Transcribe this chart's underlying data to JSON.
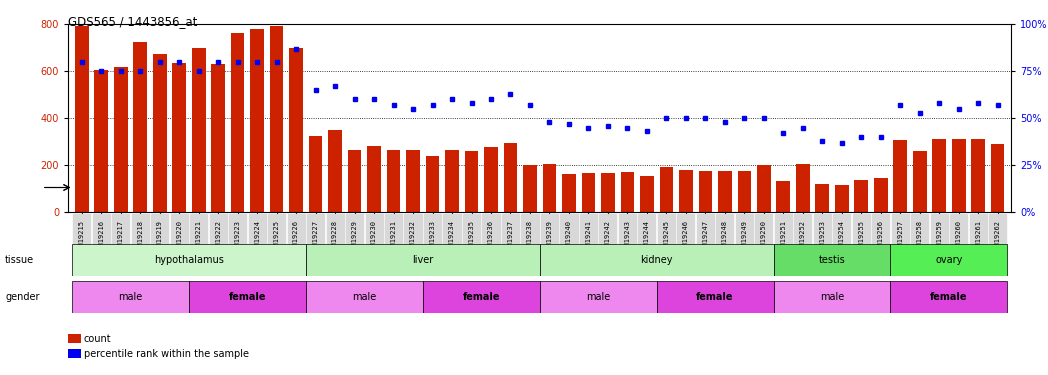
{
  "title": "GDS565 / 1443856_at",
  "samples": [
    "GSM19215",
    "GSM19216",
    "GSM19217",
    "GSM19218",
    "GSM19219",
    "GSM19220",
    "GSM19221",
    "GSM19222",
    "GSM19223",
    "GSM19224",
    "GSM19225",
    "GSM19226",
    "GSM19227",
    "GSM19228",
    "GSM19229",
    "GSM19230",
    "GSM19231",
    "GSM19232",
    "GSM19233",
    "GSM19234",
    "GSM19235",
    "GSM19236",
    "GSM19237",
    "GSM19238",
    "GSM19239",
    "GSM19240",
    "GSM19241",
    "GSM19242",
    "GSM19243",
    "GSM19244",
    "GSM19245",
    "GSM19246",
    "GSM19247",
    "GSM19248",
    "GSM19249",
    "GSM19250",
    "GSM19251",
    "GSM19252",
    "GSM19253",
    "GSM19254",
    "GSM19255",
    "GSM19256",
    "GSM19257",
    "GSM19258",
    "GSM19259",
    "GSM19260",
    "GSM19261",
    "GSM19262"
  ],
  "counts": [
    795,
    605,
    620,
    725,
    675,
    635,
    698,
    630,
    763,
    782,
    795,
    700,
    325,
    350,
    265,
    280,
    265,
    265,
    240,
    265,
    260,
    278,
    295,
    200,
    205,
    160,
    165,
    165,
    170,
    155,
    190,
    180,
    175,
    175,
    175,
    200,
    130,
    205,
    120,
    115,
    135,
    145,
    308,
    260,
    310,
    310,
    310,
    290
  ],
  "percentiles": [
    80,
    75,
    75,
    75,
    80,
    80,
    75,
    80,
    80,
    80,
    80,
    87,
    65,
    67,
    60,
    60,
    57,
    55,
    57,
    60,
    58,
    60,
    63,
    57,
    48,
    47,
    45,
    46,
    45,
    43,
    50,
    50,
    50,
    48,
    50,
    50,
    42,
    45,
    38,
    37,
    40,
    40,
    57,
    53,
    58,
    55,
    58,
    57
  ],
  "tissues": [
    {
      "name": "hypothalamus",
      "start": 0,
      "end": 11,
      "color": "#ccf5cc"
    },
    {
      "name": "liver",
      "start": 12,
      "end": 23,
      "color": "#b8f0b8"
    },
    {
      "name": "kidney",
      "start": 24,
      "end": 35,
      "color": "#b8f0b8"
    },
    {
      "name": "testis",
      "start": 36,
      "end": 41,
      "color": "#66dd66"
    },
    {
      "name": "ovary",
      "start": 42,
      "end": 47,
      "color": "#55ee55"
    }
  ],
  "genders": [
    {
      "name": "male",
      "start": 0,
      "end": 5,
      "color": "#ee88ee",
      "bold": false
    },
    {
      "name": "female",
      "start": 6,
      "end": 11,
      "color": "#dd44dd",
      "bold": true
    },
    {
      "name": "male",
      "start": 12,
      "end": 17,
      "color": "#ee88ee",
      "bold": false
    },
    {
      "name": "female",
      "start": 18,
      "end": 23,
      "color": "#dd44dd",
      "bold": true
    },
    {
      "name": "male",
      "start": 24,
      "end": 29,
      "color": "#ee88ee",
      "bold": false
    },
    {
      "name": "female",
      "start": 30,
      "end": 35,
      "color": "#dd44dd",
      "bold": true
    },
    {
      "name": "male",
      "start": 36,
      "end": 41,
      "color": "#ee88ee",
      "bold": false
    },
    {
      "name": "female",
      "start": 42,
      "end": 47,
      "color": "#dd44dd",
      "bold": true
    }
  ],
  "bar_color": "#cc2200",
  "dot_color": "#0000ee",
  "ylim_left": [
    0,
    800
  ],
  "ylim_right": [
    0,
    100
  ],
  "yticks_left": [
    0,
    200,
    400,
    600,
    800
  ],
  "yticks_right": [
    0,
    25,
    50,
    75,
    100
  ],
  "background_color": "#ffffff",
  "grid_color": "#000000",
  "xticklabel_bg": "#d8d8d8"
}
